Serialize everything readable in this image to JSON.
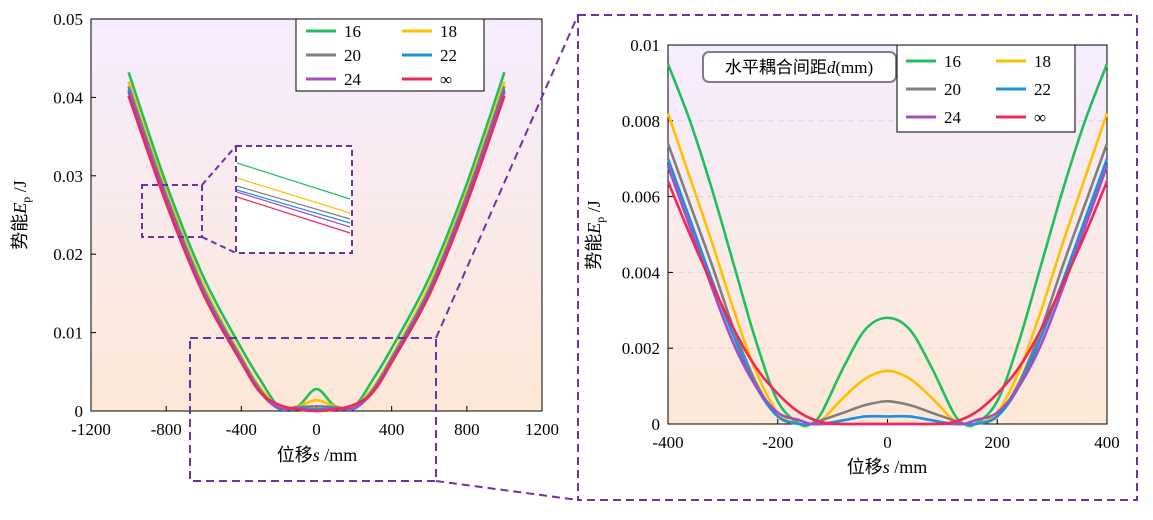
{
  "chart_data": [
    {
      "type": "line",
      "panel": "full",
      "xlabel": "位移s /mm",
      "ylabel": "势能Ep /J",
      "xlim": [
        -1200,
        1200
      ],
      "ylim": [
        0,
        0.05
      ],
      "xticks": [
        "-1200",
        "-800",
        "-400",
        "0",
        "400",
        "800",
        "1200"
      ],
      "yticks": [
        "0",
        "0.01",
        "0.02",
        "0.03",
        "0.04",
        "0.05"
      ],
      "grid": false,
      "legend_position": "top-right",
      "series": [
        {
          "name": "16",
          "color": "#1fbf5f",
          "x": [
            -1000,
            -800,
            -600,
            -400,
            -300,
            -200,
            -100,
            0,
            100,
            200,
            300,
            400,
            600,
            800,
            1000
          ],
          "y": [
            0.0432,
            0.029,
            0.017,
            0.008,
            0.004,
            0.0006,
            0.0006,
            0.0028,
            0.0006,
            0.0006,
            0.004,
            0.008,
            0.017,
            0.029,
            0.0432
          ]
        },
        {
          "name": "18",
          "color": "#ffc000",
          "x": [
            -1000,
            -800,
            -600,
            -400,
            -300,
            -200,
            -100,
            0,
            100,
            200,
            300,
            400,
            600,
            800,
            1000
          ],
          "y": [
            0.042,
            0.028,
            0.016,
            0.007,
            0.003,
            0.0005,
            0.0006,
            0.0014,
            0.0006,
            0.0005,
            0.003,
            0.007,
            0.016,
            0.028,
            0.042
          ]
        },
        {
          "name": "20",
          "color": "#7f7f7f",
          "x": [
            -1000,
            -800,
            -600,
            -400,
            -300,
            -200,
            -100,
            0,
            100,
            200,
            300,
            400,
            600,
            800,
            1000
          ],
          "y": [
            0.0414,
            0.0275,
            0.0155,
            0.0067,
            0.0027,
            0.0003,
            0.0005,
            0.0006,
            0.0005,
            0.0003,
            0.0027,
            0.0067,
            0.0155,
            0.0275,
            0.0414
          ]
        },
        {
          "name": "22",
          "color": "#1e90e0",
          "x": [
            -1000,
            -800,
            -600,
            -400,
            -300,
            -200,
            -100,
            0,
            100,
            200,
            300,
            400,
            600,
            800,
            1000
          ],
          "y": [
            0.041,
            0.0272,
            0.0153,
            0.0066,
            0.0025,
            0.0003,
            0.0004,
            0.0002,
            0.0004,
            0.0003,
            0.0025,
            0.0066,
            0.0153,
            0.0272,
            0.041
          ]
        },
        {
          "name": "24",
          "color": "#a64dbf",
          "x": [
            -1000,
            -800,
            -600,
            -400,
            -300,
            -200,
            -100,
            0,
            100,
            200,
            300,
            400,
            600,
            800,
            1000
          ],
          "y": [
            0.0407,
            0.027,
            0.015,
            0.0064,
            0.0024,
            0.0004,
            0.0003,
            0.0,
            0.0003,
            0.0004,
            0.0024,
            0.0064,
            0.015,
            0.027,
            0.0407
          ]
        },
        {
          "name": "∞",
          "color": "#f0285a",
          "x": [
            -1000,
            -800,
            -600,
            -400,
            -300,
            -200,
            -100,
            0,
            100,
            200,
            300,
            400,
            600,
            800,
            1000
          ],
          "y": [
            0.0402,
            0.0265,
            0.0148,
            0.0062,
            0.0024,
            0.0008,
            0.0002,
            0.0,
            0.0002,
            0.0008,
            0.0024,
            0.0062,
            0.0148,
            0.0265,
            0.0402
          ]
        }
      ]
    },
    {
      "type": "line",
      "panel": "zoom",
      "title": "水平耦合间距d(mm)",
      "xlabel": "位移s /mm",
      "ylabel": "势能Ep /J",
      "xlim": [
        -400,
        400
      ],
      "ylim": [
        0,
        0.01
      ],
      "xticks": [
        "-400",
        "-200",
        "0",
        "200",
        "400"
      ],
      "yticks": [
        "0",
        "0.002",
        "0.004",
        "0.006",
        "0.008",
        "0.01"
      ],
      "grid": "horizontal-dashed",
      "legend_position": "top-right",
      "series": [
        {
          "name": "16",
          "color": "#1fbf5f",
          "x": [
            -400,
            -360,
            -320,
            -280,
            -240,
            -200,
            -160,
            -140,
            -120,
            -80,
            -40,
            0,
            40,
            80,
            120,
            140,
            160,
            200,
            240,
            280,
            320,
            360,
            400
          ],
          "y": [
            0.0095,
            0.008,
            0.0062,
            0.0042,
            0.0022,
            0.0006,
            0.0,
            0.0,
            0.0003,
            0.0015,
            0.0025,
            0.0028,
            0.0025,
            0.0015,
            0.0003,
            0.0,
            0.0,
            0.0006,
            0.0022,
            0.0042,
            0.0062,
            0.008,
            0.0095
          ]
        },
        {
          "name": "18",
          "color": "#ffc000",
          "x": [
            -400,
            -360,
            -320,
            -280,
            -240,
            -200,
            -160,
            -140,
            -120,
            -80,
            -40,
            0,
            40,
            80,
            120,
            140,
            160,
            200,
            240,
            280,
            320,
            360,
            400
          ],
          "y": [
            0.0082,
            0.0065,
            0.0048,
            0.003,
            0.0014,
            0.0003,
            0.0,
            0.0,
            0.0001,
            0.0007,
            0.0012,
            0.0014,
            0.0012,
            0.0007,
            0.0001,
            0.0,
            0.0,
            0.0003,
            0.0014,
            0.003,
            0.0048,
            0.0065,
            0.0082
          ]
        },
        {
          "name": "20",
          "color": "#7f7f7f",
          "x": [
            -400,
            -360,
            -320,
            -280,
            -240,
            -200,
            -160,
            -140,
            -120,
            -80,
            -40,
            0,
            40,
            80,
            120,
            140,
            160,
            200,
            240,
            280,
            320,
            360,
            400
          ],
          "y": [
            0.0074,
            0.0058,
            0.0042,
            0.0025,
            0.0011,
            0.0002,
            0.0,
            0.0,
            0.0001,
            0.0003,
            0.0005,
            0.0006,
            0.0005,
            0.0003,
            0.0001,
            0.0,
            0.0,
            0.0002,
            0.0011,
            0.0025,
            0.0042,
            0.0058,
            0.0074
          ]
        },
        {
          "name": "22",
          "color": "#1e90e0",
          "x": [
            -400,
            -360,
            -320,
            -280,
            -240,
            -200,
            -160,
            -140,
            -120,
            -80,
            -40,
            0,
            40,
            80,
            120,
            140,
            160,
            200,
            240,
            280,
            320,
            360,
            400
          ],
          "y": [
            0.007,
            0.0054,
            0.0038,
            0.0023,
            0.001,
            0.0002,
            0.0,
            0.0,
            0.0,
            0.0001,
            0.0002,
            0.0002,
            0.0002,
            0.0001,
            0.0,
            0.0,
            0.0,
            0.0002,
            0.001,
            0.0023,
            0.0038,
            0.0054,
            0.007
          ]
        },
        {
          "name": "24",
          "color": "#a64dbf",
          "x": [
            -400,
            -360,
            -320,
            -280,
            -240,
            -200,
            -160,
            -140,
            -120,
            -80,
            -40,
            0,
            40,
            80,
            120,
            140,
            160,
            200,
            240,
            280,
            320,
            360,
            400
          ],
          "y": [
            0.0068,
            0.0052,
            0.0036,
            0.0021,
            0.001,
            0.0003,
            0.0001,
            0.0,
            0.0,
            0.0,
            0.0,
            0.0,
            0.0,
            0.0,
            0.0,
            0.0,
            0.0001,
            0.0003,
            0.001,
            0.0021,
            0.0036,
            0.0052,
            0.0068
          ]
        },
        {
          "name": "∞",
          "color": "#f0285a",
          "x": [
            -400,
            -360,
            -320,
            -280,
            -240,
            -200,
            -160,
            -120,
            -80,
            -40,
            0,
            40,
            80,
            120,
            160,
            200,
            240,
            280,
            320,
            360,
            400
          ],
          "y": [
            0.0064,
            0.005,
            0.0037,
            0.0025,
            0.0015,
            0.0008,
            0.0003,
            5e-05,
            0.0,
            0.0,
            0.0,
            0.0,
            0.0,
            5e-05,
            0.0003,
            0.0008,
            0.0015,
            0.0025,
            0.0037,
            0.005,
            0.0064
          ]
        }
      ]
    }
  ]
}
